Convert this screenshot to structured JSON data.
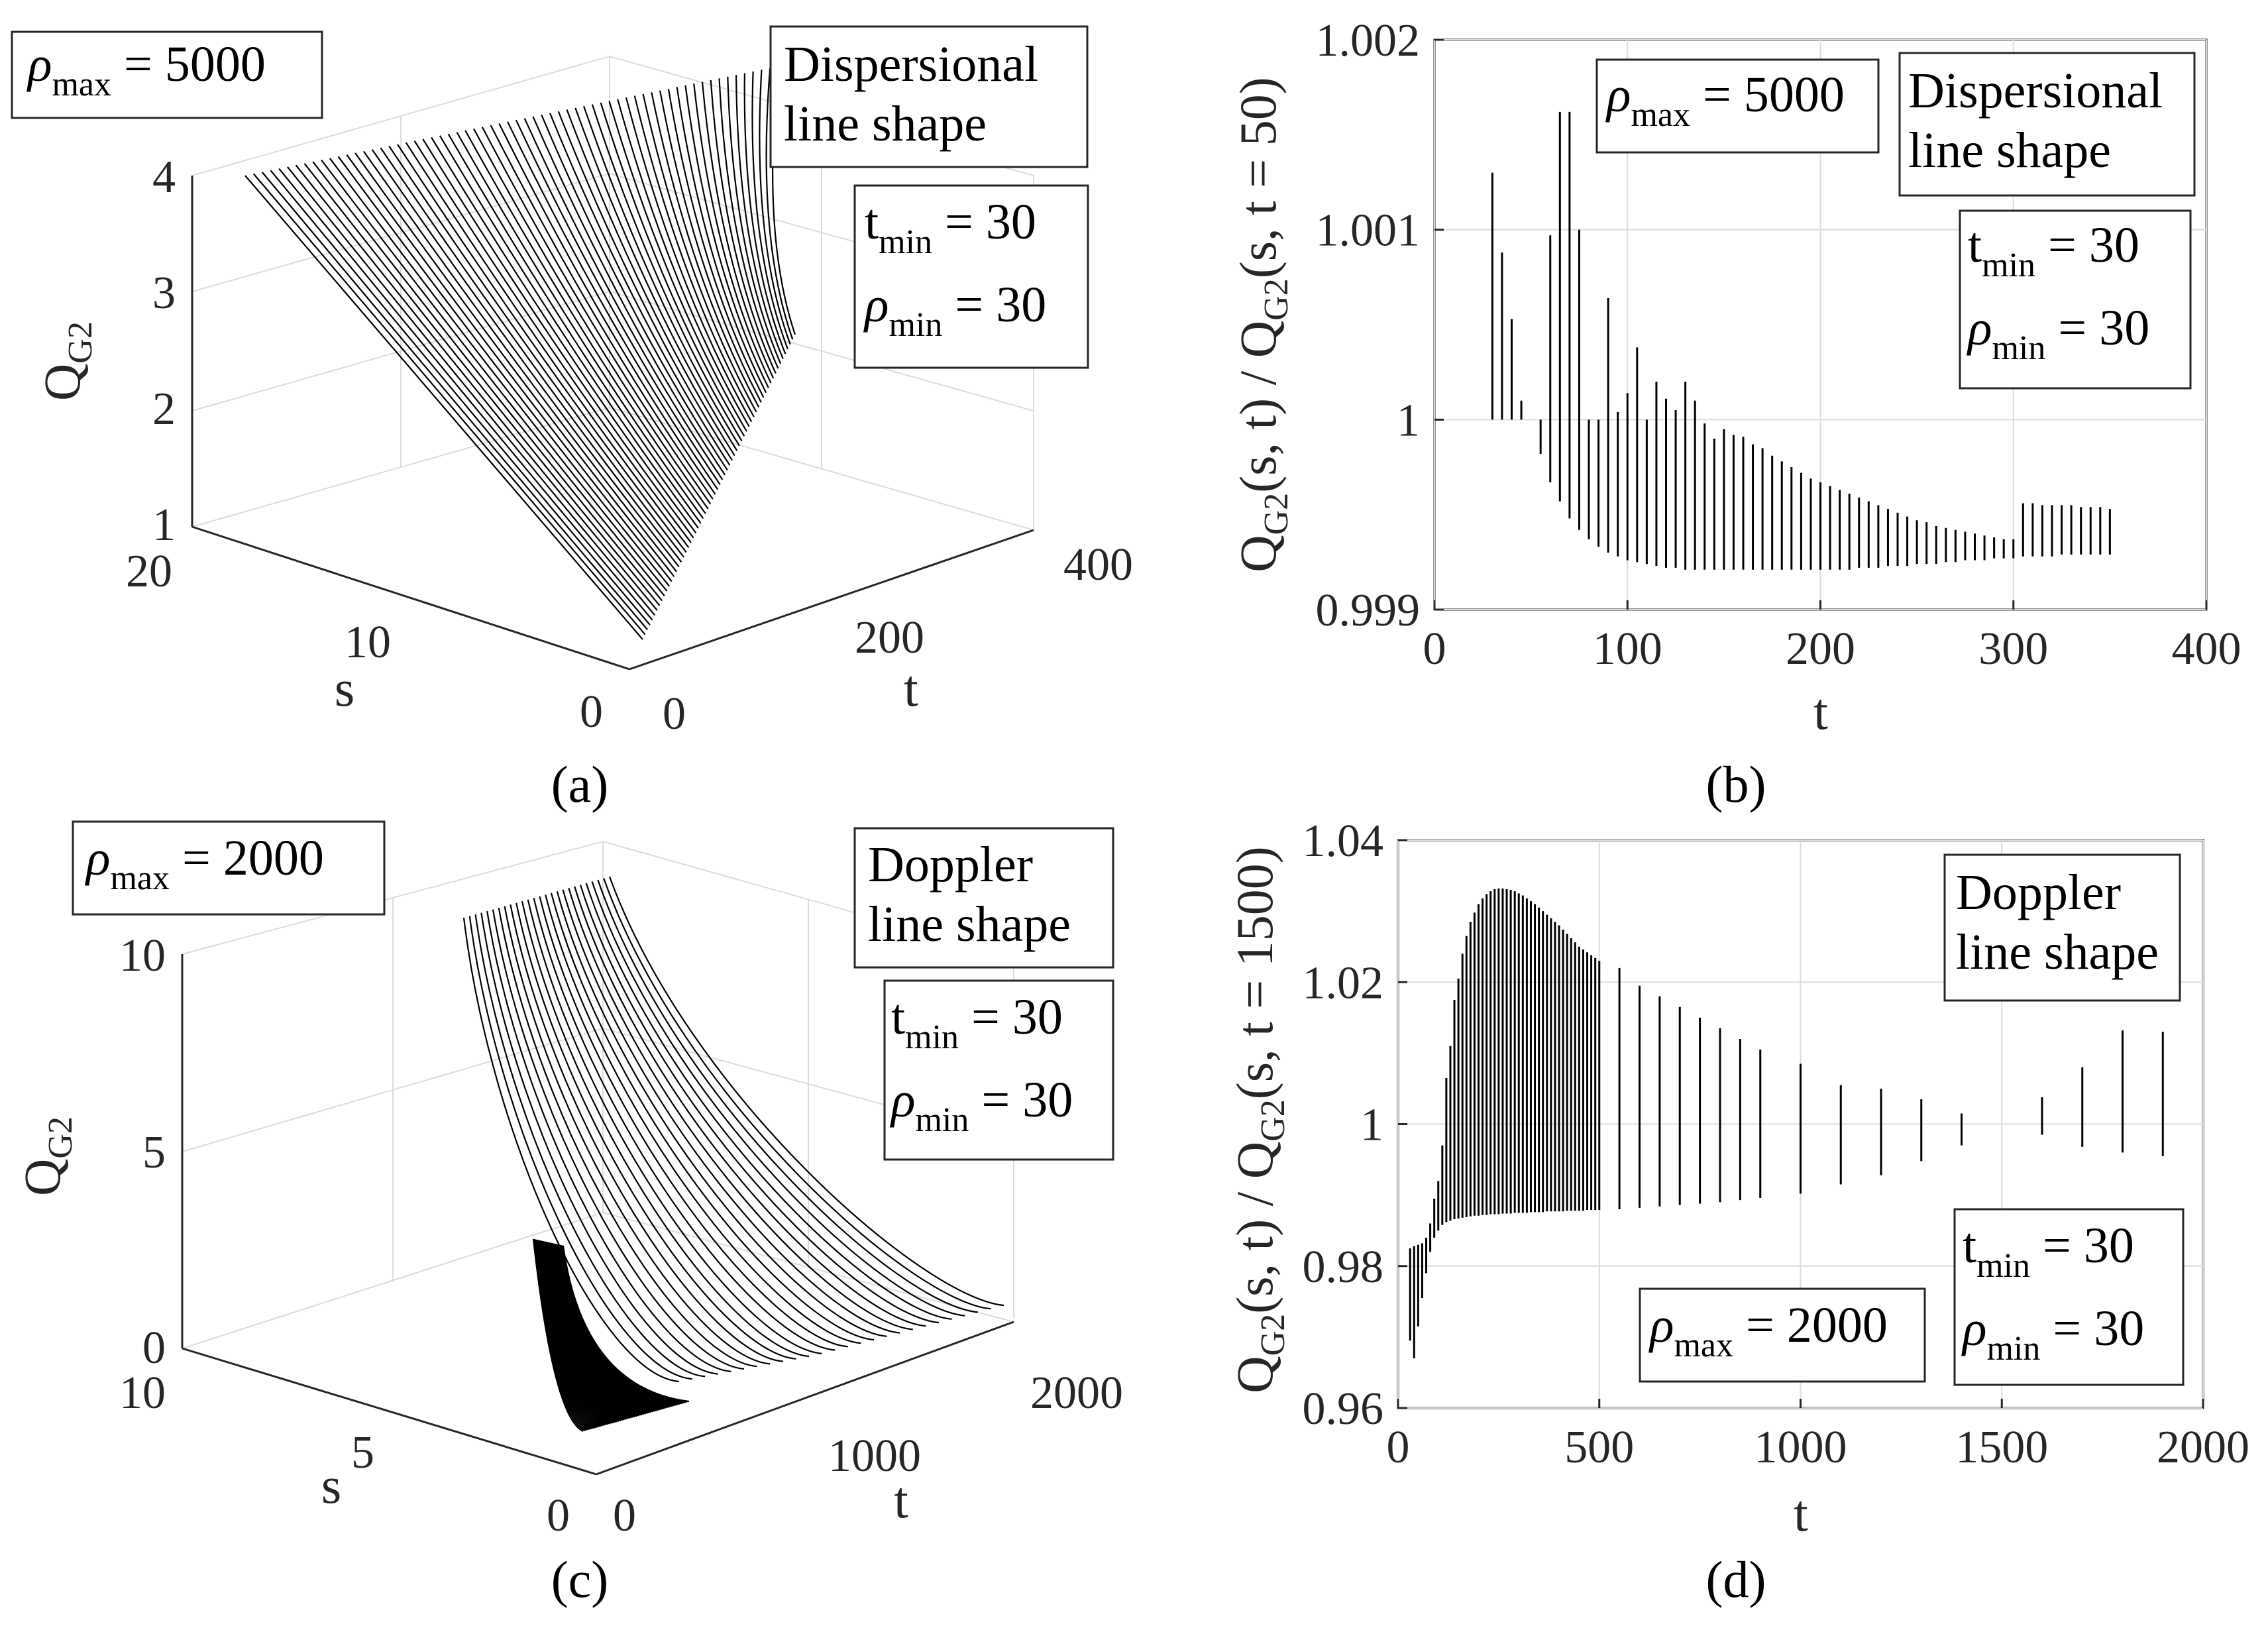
{
  "chart_data": [
    {
      "panel": "a",
      "type": "surface3d",
      "caption": "(a)",
      "zlabel": "Q",
      "zlabel_sub": "G2",
      "xlabel": "s",
      "ylabel": "t",
      "z_ticks": [
        "1",
        "2",
        "3",
        "4"
      ],
      "s_ticks": [
        "20",
        "10",
        "0"
      ],
      "t_ticks": [
        "0",
        "200",
        "400"
      ],
      "annotations": {
        "rho_max": {
          "sym": "ρ",
          "sub": "max",
          "text": " = 5000"
        },
        "line_shape": [
          "Dispersional",
          "line shape"
        ],
        "t_min": {
          "sym": "t",
          "sub": "min",
          "text": " = 30"
        },
        "rho_min": {
          "sym": "ρ",
          "sub": "min",
          "text": " = 30"
        }
      }
    },
    {
      "panel": "b",
      "type": "vlines",
      "caption": "(b)",
      "xlabel": "t",
      "ylabel_parts": [
        [
          "Q",
          ""
        ],
        [
          "G2",
          "sub"
        ],
        [
          "(s, t) / Q",
          ""
        ],
        [
          "G2",
          "sub"
        ],
        [
          "(s, t = 50)",
          ""
        ]
      ],
      "xlim": [
        0,
        400
      ],
      "ylim": [
        0.999,
        1.002
      ],
      "x_ticks": [
        "0",
        "100",
        "200",
        "300",
        "400"
      ],
      "y_ticks": [
        "0.999",
        "1",
        "1.001",
        "1.002"
      ],
      "segments": [
        [
          30,
          1.0,
          1.0013
        ],
        [
          35,
          1.0,
          1.00088
        ],
        [
          40,
          1.0,
          1.00053
        ],
        [
          45,
          1.0,
          1.0001
        ],
        [
          55,
          1.0,
          0.99982
        ],
        [
          60,
          0.99967,
          1.00097
        ],
        [
          65,
          0.99957,
          1.00162
        ],
        [
          70,
          0.99948,
          1.00162
        ],
        [
          75,
          0.99942,
          1.001
        ],
        [
          80,
          0.99937,
          1.0
        ],
        [
          85,
          0.99933,
          1.0
        ],
        [
          90,
          0.9993,
          1.00064
        ],
        [
          95,
          0.99928,
          1.00004
        ],
        [
          100,
          0.99926,
          1.00014
        ],
        [
          105,
          0.99925,
          1.00038
        ],
        [
          110,
          0.99924,
          1.0
        ],
        [
          115,
          0.99923,
          1.0002
        ],
        [
          120,
          0.99922,
          1.00011
        ],
        [
          125,
          0.99922,
          1.00005
        ],
        [
          130,
          0.99921,
          1.0002
        ],
        [
          135,
          0.99921,
          1.0001
        ],
        [
          140,
          0.99921,
          0.99998
        ],
        [
          145,
          0.99921,
          0.9999
        ],
        [
          150,
          0.99921,
          0.99995
        ],
        [
          155,
          0.99921,
          0.99992
        ],
        [
          160,
          0.99921,
          0.99991
        ],
        [
          165,
          0.99921,
          0.99987
        ],
        [
          170,
          0.99921,
          0.99985
        ],
        [
          175,
          0.99921,
          0.99981
        ],
        [
          180,
          0.99921,
          0.99978
        ],
        [
          185,
          0.99921,
          0.99975
        ],
        [
          190,
          0.99921,
          0.99972
        ],
        [
          195,
          0.99921,
          0.99969
        ],
        [
          200,
          0.99921,
          0.99967
        ],
        [
          205,
          0.99921,
          0.99965
        ],
        [
          210,
          0.99921,
          0.99963
        ],
        [
          215,
          0.99921,
          0.99961
        ],
        [
          220,
          0.99922,
          0.99959
        ],
        [
          225,
          0.99922,
          0.99957
        ],
        [
          230,
          0.99922,
          0.99955
        ],
        [
          235,
          0.99923,
          0.99953
        ],
        [
          240,
          0.99923,
          0.99951
        ],
        [
          245,
          0.99923,
          0.99949
        ],
        [
          250,
          0.99924,
          0.99947
        ],
        [
          255,
          0.99924,
          0.99946
        ],
        [
          260,
          0.99924,
          0.99944
        ],
        [
          265,
          0.99925,
          0.99943
        ],
        [
          270,
          0.99925,
          0.99942
        ],
        [
          275,
          0.99926,
          0.99941
        ],
        [
          280,
          0.99926,
          0.9994
        ],
        [
          285,
          0.99926,
          0.99939
        ],
        [
          290,
          0.99927,
          0.99938
        ],
        [
          295,
          0.99927,
          0.99937
        ],
        [
          300,
          0.99927,
          0.99937
        ],
        [
          305,
          0.99928,
          0.99956
        ],
        [
          310,
          0.99928,
          0.99956
        ],
        [
          315,
          0.99928,
          0.99955
        ],
        [
          320,
          0.99928,
          0.99955
        ],
        [
          325,
          0.99929,
          0.99955
        ],
        [
          330,
          0.99929,
          0.99955
        ],
        [
          335,
          0.99929,
          0.99954
        ],
        [
          340,
          0.99929,
          0.99954
        ],
        [
          345,
          0.99929,
          0.99954
        ],
        [
          350,
          0.99929,
          0.99953
        ]
      ],
      "annotations": {
        "rho_max": {
          "sym": "ρ",
          "sub": "max",
          "text": " = 5000"
        },
        "line_shape": [
          "Dispersional",
          "line shape"
        ],
        "t_min": {
          "sym": "t",
          "sub": "min",
          "text": " = 30"
        },
        "rho_min": {
          "sym": "ρ",
          "sub": "min",
          "text": " = 30"
        }
      }
    },
    {
      "panel": "c",
      "type": "surface3d",
      "caption": "(c)",
      "zlabel": "Q",
      "zlabel_sub": "G2",
      "xlabel": "s",
      "ylabel": "t",
      "z_ticks": [
        "0",
        "5",
        "10"
      ],
      "s_ticks": [
        "10",
        "5",
        "0"
      ],
      "t_ticks": [
        "0",
        "1000",
        "2000"
      ],
      "annotations": {
        "rho_max": {
          "sym": "ρ",
          "sub": "max",
          "text": " = 2000"
        },
        "line_shape": [
          "Doppler",
          "line shape"
        ],
        "t_min": {
          "sym": "t",
          "sub": "min",
          "text": " = 30"
        },
        "rho_min": {
          "sym": "ρ",
          "sub": "min",
          "text": " = 30"
        }
      }
    },
    {
      "panel": "d",
      "type": "vlines",
      "caption": "(d)",
      "xlabel": "t",
      "ylabel_parts": [
        [
          "Q",
          ""
        ],
        [
          "G2",
          "sub"
        ],
        [
          "(s, t) / Q",
          ""
        ],
        [
          "G2",
          "sub"
        ],
        [
          "(s, t = 1500)",
          ""
        ]
      ],
      "xlim": [
        0,
        2000
      ],
      "ylim": [
        0.96,
        1.04
      ],
      "x_ticks": [
        "0",
        "500",
        "1000",
        "1500",
        "2000"
      ],
      "y_ticks": [
        "0.96",
        "0.98",
        "1",
        "1.02",
        "1.04"
      ],
      "segments": [
        [
          30,
          0.9695,
          0.9825
        ],
        [
          40,
          0.967,
          0.9828
        ],
        [
          50,
          0.9715,
          0.983
        ],
        [
          60,
          0.9755,
          0.9832
        ],
        [
          70,
          0.979,
          0.984
        ],
        [
          80,
          0.982,
          0.986
        ],
        [
          90,
          0.984,
          0.9895
        ],
        [
          100,
          0.985,
          0.992
        ],
        [
          110,
          0.9858,
          0.997
        ],
        [
          120,
          0.9862,
          1.0065
        ],
        [
          130,
          0.9864,
          1.011
        ],
        [
          140,
          0.9866,
          1.0175
        ],
        [
          150,
          0.9867,
          1.0205
        ],
        [
          160,
          0.9868,
          1.024
        ],
        [
          170,
          0.9869,
          1.0265
        ],
        [
          180,
          0.987,
          1.0285
        ],
        [
          190,
          0.9871,
          1.0298
        ],
        [
          200,
          0.9871,
          1.031
        ],
        [
          210,
          0.9872,
          1.0318
        ],
        [
          220,
          0.9872,
          1.0324
        ],
        [
          230,
          0.9873,
          1.0328
        ],
        [
          240,
          0.9873,
          1.0331
        ],
        [
          250,
          0.9873,
          1.0332
        ],
        [
          260,
          0.9874,
          1.0332
        ],
        [
          270,
          0.9874,
          1.0331
        ],
        [
          280,
          0.9874,
          1.033
        ],
        [
          290,
          0.9875,
          1.0328
        ],
        [
          300,
          0.9875,
          1.0325
        ],
        [
          310,
          0.9875,
          1.0322
        ],
        [
          320,
          0.9875,
          1.0318
        ],
        [
          330,
          0.9876,
          1.0314
        ],
        [
          340,
          0.9876,
          1.031
        ],
        [
          350,
          0.9876,
          1.0305
        ],
        [
          360,
          0.9876,
          1.03
        ],
        [
          370,
          0.9877,
          1.0295
        ],
        [
          380,
          0.9877,
          1.029
        ],
        [
          390,
          0.9877,
          1.0285
        ],
        [
          400,
          0.9877,
          1.028
        ],
        [
          410,
          0.9877,
          1.0274
        ],
        [
          420,
          0.9878,
          1.0268
        ],
        [
          430,
          0.9878,
          1.0262
        ],
        [
          440,
          0.9878,
          1.0256
        ],
        [
          450,
          0.9878,
          1.025
        ],
        [
          460,
          0.9878,
          1.0246
        ],
        [
          470,
          0.9879,
          1.0242
        ],
        [
          480,
          0.9879,
          1.0238
        ],
        [
          490,
          0.9879,
          1.0234
        ],
        [
          500,
          0.9879,
          1.023
        ],
        [
          550,
          0.988,
          1.022
        ],
        [
          600,
          0.9882,
          1.0195
        ],
        [
          650,
          0.9884,
          1.018
        ],
        [
          700,
          0.9886,
          1.0165
        ],
        [
          750,
          0.9888,
          1.015
        ],
        [
          800,
          0.989,
          1.0135
        ],
        [
          850,
          0.9893,
          1.012
        ],
        [
          900,
          0.9896,
          1.0105
        ],
        [
          1000,
          0.9902,
          1.0085
        ],
        [
          1100,
          0.9915,
          1.0055
        ],
        [
          1200,
          0.9928,
          1.005
        ],
        [
          1300,
          0.9948,
          1.0035
        ],
        [
          1400,
          0.997,
          1.0015
        ],
        [
          1600,
          0.9985,
          1.0038
        ],
        [
          1700,
          0.9968,
          1.008
        ],
        [
          1800,
          0.996,
          1.0132
        ],
        [
          1900,
          0.9955,
          1.013
        ]
      ],
      "annotations": {
        "rho_max": {
          "sym": "ρ",
          "sub": "max",
          "text": " = 2000"
        },
        "line_shape": [
          "Doppler",
          "line shape"
        ],
        "t_min": {
          "sym": "t",
          "sub": "min",
          "text": " = 30"
        },
        "rho_min": {
          "sym": "ρ",
          "sub": "min",
          "text": " = 30"
        }
      }
    }
  ]
}
